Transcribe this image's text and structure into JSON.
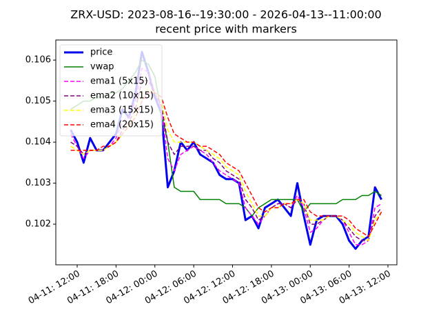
{
  "chart_data": {
    "type": "line",
    "title": "ZRX-USD: 2023-08-16--19:30:00 - 2026-04-13--11:00:00",
    "subtitle": "recent price with markers",
    "x": [
      "04-11 11:00",
      "04-11 12:00",
      "04-11 13:00",
      "04-11 14:00",
      "04-11 15:00",
      "04-11 16:00",
      "04-11 17:00",
      "04-11 18:00",
      "04-11 19:00",
      "04-11 20:00",
      "04-11 21:00",
      "04-11 22:00",
      "04-11 23:00",
      "04-12 00:00",
      "04-12 01:00",
      "04-12 02:00",
      "04-12 03:00",
      "04-12 04:00",
      "04-12 05:00",
      "04-12 06:00",
      "04-12 07:00",
      "04-12 08:00",
      "04-12 09:00",
      "04-12 10:00",
      "04-12 11:00",
      "04-12 12:00",
      "04-12 13:00",
      "04-12 14:00",
      "04-12 15:00",
      "04-12 16:00",
      "04-12 17:00",
      "04-12 18:00",
      "04-12 19:00",
      "04-12 20:00",
      "04-12 21:00",
      "04-12 22:00",
      "04-12 23:00",
      "04-13 00:00",
      "04-13 01:00",
      "04-13 02:00",
      "04-13 03:00",
      "04-13 04:00",
      "04-13 05:00",
      "04-13 06:00",
      "04-13 07:00",
      "04-13 08:00",
      "04-13 09:00",
      "04-13 10:00",
      "04-13 11:00"
    ],
    "series": [
      {
        "name": "price",
        "color": "#0000ee",
        "style": "solid",
        "width": 3,
        "values": [
          0.1043,
          0.104,
          0.1035,
          0.1041,
          0.1038,
          0.1038,
          0.104,
          0.1042,
          0.1048,
          0.1046,
          0.1052,
          0.1062,
          0.1057,
          0.1051,
          0.1047,
          0.1029,
          0.1033,
          0.104,
          0.1038,
          0.104,
          0.1037,
          0.1036,
          0.1035,
          0.1032,
          0.1031,
          0.1031,
          0.103,
          0.1021,
          0.1022,
          0.1019,
          0.1024,
          0.1025,
          0.1026,
          0.1024,
          0.1022,
          0.103,
          0.1022,
          0.1015,
          0.1021,
          0.1022,
          0.1022,
          0.1022,
          0.102,
          0.1016,
          0.1014,
          0.1016,
          0.1017,
          0.1029,
          0.1026
        ]
      },
      {
        "name": "vwap",
        "color": "#008000",
        "style": "solid",
        "width": 1.5,
        "values": [
          0.1048,
          0.1049,
          0.105,
          0.105,
          0.1051,
          0.1051,
          0.1052,
          0.1052,
          0.1053,
          0.1055,
          0.1057,
          0.106,
          0.1059,
          0.1056,
          0.1047,
          0.104,
          0.1029,
          0.1028,
          0.1028,
          0.1028,
          0.1026,
          0.1026,
          0.1026,
          0.1026,
          0.1025,
          0.1025,
          0.1025,
          0.1024,
          0.1022,
          0.1024,
          0.1025,
          0.1026,
          0.1026,
          0.1026,
          0.1026,
          0.1026,
          0.1023,
          0.1025,
          0.1025,
          0.1025,
          0.1025,
          0.1025,
          0.1026,
          0.1026,
          0.1026,
          0.1027,
          0.1027,
          0.1028,
          0.1027
        ]
      },
      {
        "name": "ema1 (5x15)",
        "color": "#ff00ff",
        "style": "dashed",
        "width": 1.5,
        "values": [
          0.1042,
          0.1039,
          0.1036,
          0.1038,
          0.1038,
          0.1038,
          0.1039,
          0.1041,
          0.1045,
          0.1046,
          0.105,
          0.1058,
          0.1057,
          0.1052,
          0.1048,
          0.1036,
          0.1033,
          0.1037,
          0.1038,
          0.1039,
          0.1038,
          0.1037,
          0.1035,
          0.1033,
          0.1032,
          0.1031,
          0.103,
          0.1024,
          0.1022,
          0.102,
          0.1022,
          0.1024,
          0.1025,
          0.1025,
          0.1024,
          0.1027,
          0.1024,
          0.1018,
          0.1019,
          0.1021,
          0.1022,
          0.1022,
          0.1021,
          0.1018,
          0.1015,
          0.1015,
          0.1016,
          0.1024,
          0.1025
        ]
      },
      {
        "name": "ema2 (10x15)",
        "color": "#800080",
        "style": "dashed",
        "width": 1.5,
        "values": [
          0.104,
          0.1039,
          0.1037,
          0.1038,
          0.1038,
          0.1038,
          0.1039,
          0.104,
          0.1043,
          0.1045,
          0.1048,
          0.1055,
          0.1055,
          0.1052,
          0.1049,
          0.104,
          0.1037,
          0.1039,
          0.1039,
          0.1039,
          0.1038,
          0.1038,
          0.1036,
          0.1035,
          0.1033,
          0.1032,
          0.1031,
          0.1026,
          0.1024,
          0.1021,
          0.1022,
          0.1024,
          0.1025,
          0.1025,
          0.1024,
          0.1026,
          0.1025,
          0.102,
          0.102,
          0.1021,
          0.1022,
          0.1022,
          0.1021,
          0.1019,
          0.1017,
          0.1016,
          0.1016,
          0.1022,
          0.1024
        ]
      },
      {
        "name": "ema3 (15x15)",
        "color": "#ffff00",
        "style": "dashed",
        "width": 1.5,
        "values": [
          0.1039,
          0.1038,
          0.1037,
          0.1038,
          0.1038,
          0.1038,
          0.1039,
          0.104,
          0.1042,
          0.1044,
          0.1047,
          0.1052,
          0.1053,
          0.1052,
          0.105,
          0.1043,
          0.104,
          0.104,
          0.104,
          0.104,
          0.1039,
          0.1038,
          0.1037,
          0.1036,
          0.1034,
          0.1033,
          0.1032,
          0.1028,
          0.1025,
          0.1022,
          0.1022,
          0.1024,
          0.1024,
          0.1025,
          0.1025,
          0.1026,
          0.1025,
          0.1021,
          0.1021,
          0.1021,
          0.1022,
          0.1022,
          0.1021,
          0.102,
          0.1018,
          0.1017,
          0.1016,
          0.1021,
          0.1023
        ]
      },
      {
        "name": "ema4 (20x15)",
        "color": "#ff0000",
        "style": "dashed",
        "width": 1.5,
        "values": [
          0.1038,
          0.1038,
          0.1038,
          0.1038,
          0.1038,
          0.1039,
          0.1039,
          0.104,
          0.1042,
          0.1044,
          0.1046,
          0.105,
          0.1052,
          0.1052,
          0.1051,
          0.1046,
          0.1042,
          0.1041,
          0.104,
          0.104,
          0.1039,
          0.1039,
          0.1038,
          0.1037,
          0.1035,
          0.1034,
          0.1033,
          0.103,
          0.1027,
          0.1024,
          0.1023,
          0.1024,
          0.1024,
          0.1025,
          0.1025,
          0.1026,
          0.1026,
          0.1023,
          0.1022,
          0.1022,
          0.1022,
          0.1022,
          0.1022,
          0.1021,
          0.1019,
          0.1018,
          0.1017,
          0.102,
          0.1023
        ]
      }
    ],
    "xlim": [
      "04-11 08:42",
      "04-13 13:23"
    ],
    "xticks": [
      {
        "value": "04-11 12:00",
        "label": "04-11: 12:00"
      },
      {
        "value": "04-11 18:00",
        "label": "04-11: 18:00"
      },
      {
        "value": "04-12 00:00",
        "label": "04-12: 00:00"
      },
      {
        "value": "04-12 06:00",
        "label": "04-12: 06:00"
      },
      {
        "value": "04-12 12:00",
        "label": "04-12: 12:00"
      },
      {
        "value": "04-12 18:00",
        "label": "04-12: 18:00"
      },
      {
        "value": "04-13 00:00",
        "label": "04-13: 00:00"
      },
      {
        "value": "04-13 06:00",
        "label": "04-13: 06:00"
      },
      {
        "value": "04-13 12:00",
        "label": "04-13: 12:00"
      }
    ],
    "ylim": [
      0.10101,
      0.10649
    ],
    "yticks": [
      0.102,
      0.103,
      0.104,
      0.105,
      0.106
    ],
    "legend": "upper left"
  }
}
